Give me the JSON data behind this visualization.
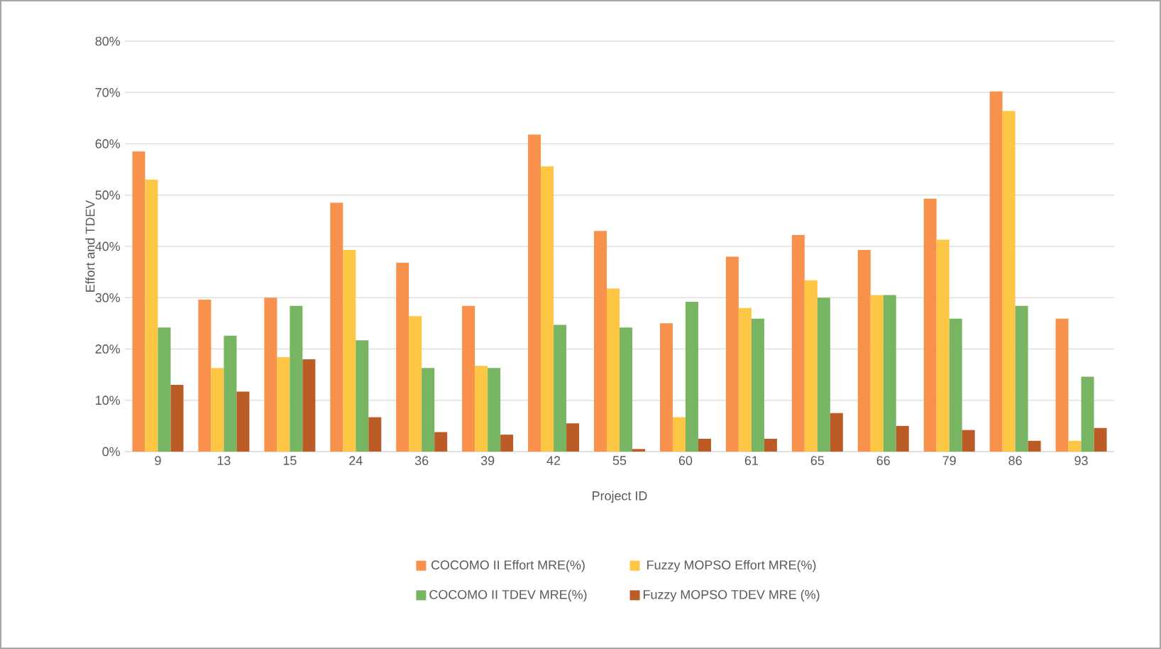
{
  "chart_data": {
    "type": "bar",
    "xlabel": "Project ID",
    "ylabel": "Effort and TDEV",
    "categories": [
      "9",
      "13",
      "15",
      "24",
      "36",
      "39",
      "42",
      "55",
      "60",
      "61",
      "65",
      "66",
      "79",
      "86",
      "93"
    ],
    "series": [
      {
        "name": "COCOMO II Effort MRE(%)",
        "color": "#f8914c",
        "values": [
          58.5,
          29.6,
          30,
          48.5,
          36.8,
          28.4,
          61.8,
          43,
          25,
          38,
          42.2,
          39.3,
          49.3,
          70.2,
          25.9
        ]
      },
      {
        "name": "Fuzzy MOPSO Effort MRE(%)",
        "color": "#fdc644",
        "values": [
          53,
          16.3,
          18.4,
          39.3,
          26.4,
          16.7,
          55.6,
          31.8,
          6.7,
          28,
          33.4,
          30.5,
          41.3,
          66.4,
          2.1
        ]
      },
      {
        "name": "COCOMO II TDEV MRE(%)",
        "color": "#77b563",
        "values": [
          24.2,
          22.6,
          28.4,
          21.7,
          16.3,
          16.3,
          24.7,
          24.2,
          29.2,
          25.9,
          30,
          30.5,
          25.9,
          28.4,
          14.6
        ]
      },
      {
        "name": "Fuzzy MOPSO TDEV MRE (%)",
        "color": "#bb5b25",
        "values": [
          13,
          11.7,
          18,
          6.7,
          3.8,
          3.3,
          5.5,
          0.5,
          2.5,
          2.5,
          7.5,
          5,
          4.2,
          2.1,
          4.6
        ]
      }
    ],
    "ylim": [
      0,
      80
    ],
    "yticks": [
      {
        "value": 0,
        "label": "0%"
      },
      {
        "value": 10,
        "label": "10%"
      },
      {
        "value": 20,
        "label": "20%"
      },
      {
        "value": 30,
        "label": "30%"
      },
      {
        "value": 40,
        "label": "40%"
      },
      {
        "value": 50,
        "label": "50%"
      },
      {
        "value": 60,
        "label": "60%"
      },
      {
        "value": 70,
        "label": "70%"
      },
      {
        "value": 80,
        "label": "80%"
      }
    ],
    "grid": "y",
    "legend": "bottom"
  }
}
